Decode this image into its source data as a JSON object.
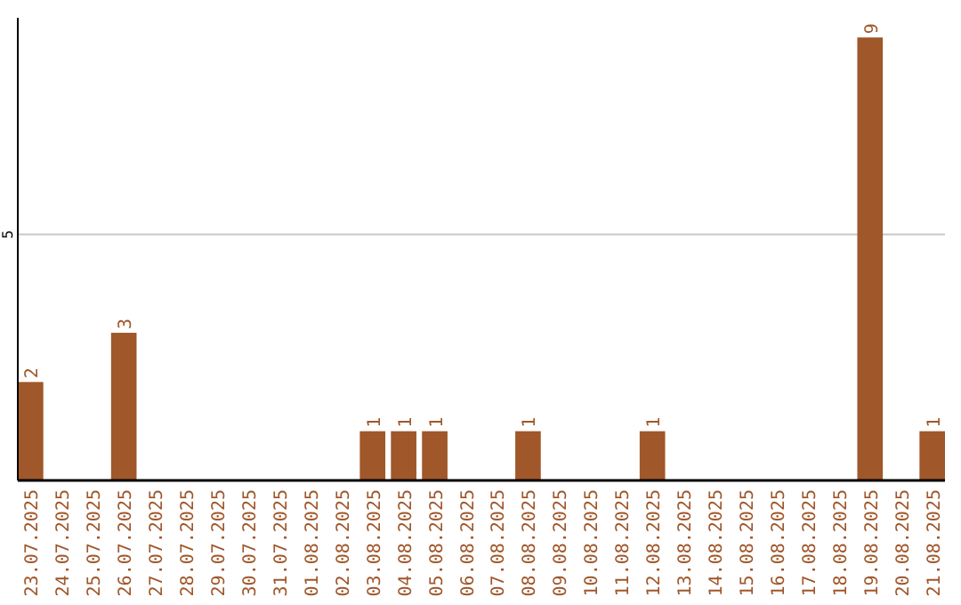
{
  "chart_data": {
    "type": "bar",
    "categories": [
      "23.07.2025",
      "24.07.2025",
      "25.07.2025",
      "26.07.2025",
      "27.07.2025",
      "28.07.2025",
      "29.07.2025",
      "30.07.2025",
      "31.07.2025",
      "01.08.2025",
      "02.08.2025",
      "03.08.2025",
      "04.08.2025",
      "05.08.2025",
      "06.08.2025",
      "07.08.2025",
      "08.08.2025",
      "09.08.2025",
      "10.08.2025",
      "11.08.2025",
      "12.08.2025",
      "13.08.2025",
      "14.08.2025",
      "15.08.2025",
      "16.08.2025",
      "17.08.2025",
      "18.08.2025",
      "19.08.2025",
      "20.08.2025",
      "21.08.2025"
    ],
    "values": [
      2,
      0,
      0,
      3,
      0,
      0,
      0,
      0,
      0,
      0,
      0,
      1,
      1,
      1,
      0,
      0,
      1,
      0,
      0,
      0,
      1,
      0,
      0,
      0,
      0,
      0,
      0,
      9,
      0,
      1
    ],
    "value_labels": [
      "2",
      null,
      null,
      "3",
      null,
      null,
      null,
      null,
      null,
      null,
      null,
      "1",
      "1",
      "1",
      null,
      null,
      "1",
      null,
      null,
      null,
      "1",
      null,
      null,
      null,
      null,
      null,
      null,
      "9",
      null,
      "1"
    ],
    "color": "#a0572a",
    "ylim": [
      0,
      9.4
    ],
    "yticks": [
      5
    ],
    "grid": "y"
  }
}
